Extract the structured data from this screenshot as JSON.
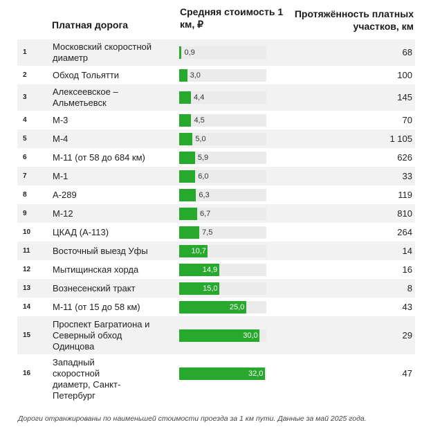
{
  "headers": {
    "road": "Платная дорога",
    "cost": "Средняя стоимость 1 км, ₽",
    "length": "Протяжённость платных участков, км"
  },
  "chart_data": {
    "type": "table",
    "value_axis_max": 32.0,
    "bar_color": "#26a92c",
    "track_color": "#ebebeb",
    "rows": [
      {
        "rank": "1",
        "name": "Московский скоростной диаметр",
        "cost": 0.9,
        "cost_label": "0,9",
        "length": "68"
      },
      {
        "rank": "2",
        "name": "Обход Тольятти",
        "cost": 3.0,
        "cost_label": "3,0",
        "length": "100"
      },
      {
        "rank": "3",
        "name": "Алексеевское – Альметьевск",
        "cost": 4.4,
        "cost_label": "4,4",
        "length": "145"
      },
      {
        "rank": "4",
        "name": "М-3",
        "cost": 4.5,
        "cost_label": "4,5",
        "length": "70"
      },
      {
        "rank": "5",
        "name": "М-4",
        "cost": 5.0,
        "cost_label": "5,0",
        "length": "1 105"
      },
      {
        "rank": "6",
        "name": "М-11 (от 58 до 684 км)",
        "cost": 5.9,
        "cost_label": "5,9",
        "length": "626"
      },
      {
        "rank": "7",
        "name": "М-1",
        "cost": 6.0,
        "cost_label": "6,0",
        "length": "33"
      },
      {
        "rank": "8",
        "name": "А-289",
        "cost": 6.3,
        "cost_label": "6,3",
        "length": "119"
      },
      {
        "rank": "9",
        "name": "М-12",
        "cost": 6.7,
        "cost_label": "6,7",
        "length": "810"
      },
      {
        "rank": "10",
        "name": "ЦКАД (А-113)",
        "cost": 7.5,
        "cost_label": "7,5",
        "length": "264"
      },
      {
        "rank": "11",
        "name": "Восточный выезд Уфы",
        "cost": 10.7,
        "cost_label": "10,7",
        "length": "14"
      },
      {
        "rank": "12",
        "name": "Мытищинская хорда",
        "cost": 14.9,
        "cost_label": "14,9",
        "length": "16"
      },
      {
        "rank": "13",
        "name": "Вознесенский тракт",
        "cost": 15.0,
        "cost_label": "15,0",
        "length": "8"
      },
      {
        "rank": "14",
        "name": "М-11 (от 15 до 58 км)",
        "cost": 25.0,
        "cost_label": "25,0",
        "length": "43"
      },
      {
        "rank": "15",
        "name": "Проспект Багратиона и Северный обход Одинцова",
        "cost": 30.0,
        "cost_label": "30,0",
        "length": "29"
      },
      {
        "rank": "16",
        "name": "Западный скоростной диаметр, Санкт-Петербург",
        "cost": 32.0,
        "cost_label": "32,0",
        "length": "47"
      }
    ]
  },
  "footnote": "Дороги отранжированы по наименьшей стоимости проезда за 1 км пути. Данные за май 2025 года."
}
